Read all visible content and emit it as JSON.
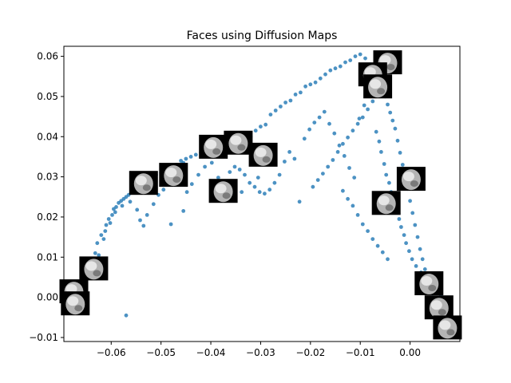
{
  "chart_data": {
    "type": "scatter",
    "title": "Faces using Diffusion Maps",
    "xlabel": "",
    "ylabel": "",
    "xlim": [
      -0.0695,
      0.01
    ],
    "ylim": [
      -0.011,
      0.0625
    ],
    "grid": false,
    "point_color": "#1f77b4",
    "xticks": [
      -0.06,
      -0.05,
      -0.04,
      -0.03,
      -0.02,
      -0.01,
      0.0
    ],
    "xtick_labels": [
      "−0.06",
      "−0.05",
      "−0.04",
      "−0.03",
      "−0.02",
      "−0.01",
      "0.00"
    ],
    "yticks": [
      -0.01,
      0.0,
      0.01,
      0.02,
      0.03,
      0.04,
      0.05,
      0.06
    ],
    "ytick_labels": [
      "−0.01",
      "0.00",
      "0.01",
      "0.02",
      "0.03",
      "0.04",
      "0.05",
      "0.06"
    ],
    "points": [
      [
        -0.0675,
        0.0005
      ],
      [
        -0.0672,
        -0.0008
      ],
      [
        -0.0665,
        0.0025
      ],
      [
        -0.066,
        0.004
      ],
      [
        -0.0655,
        0.0045
      ],
      [
        -0.065,
        0.006
      ],
      [
        -0.064,
        0.009
      ],
      [
        -0.0632,
        0.011
      ],
      [
        -0.0628,
        0.0135
      ],
      [
        -0.062,
        0.0155
      ],
      [
        -0.0615,
        0.0145
      ],
      [
        -0.061,
        0.018
      ],
      [
        -0.0605,
        0.0195
      ],
      [
        -0.0598,
        0.0205
      ],
      [
        -0.0595,
        0.022
      ],
      [
        -0.059,
        0.0225
      ],
      [
        -0.0585,
        0.0235
      ],
      [
        -0.058,
        0.024
      ],
      [
        -0.0575,
        0.0245
      ],
      [
        -0.057,
        0.025
      ],
      [
        -0.0565,
        0.0255
      ],
      [
        -0.056,
        0.026
      ],
      [
        -0.0555,
        0.027
      ],
      [
        -0.055,
        0.0275
      ],
      [
        -0.0545,
        0.028
      ],
      [
        -0.054,
        0.029
      ],
      [
        -0.0535,
        0.0285
      ],
      [
        -0.053,
        0.03
      ],
      [
        -0.052,
        0.0295
      ],
      [
        -0.051,
        0.0305
      ],
      [
        -0.05,
        0.031
      ],
      [
        -0.049,
        0.0315
      ],
      [
        -0.048,
        0.032
      ],
      [
        -0.047,
        0.033
      ],
      [
        -0.046,
        0.034
      ],
      [
        -0.045,
        0.0345
      ],
      [
        -0.044,
        0.035
      ],
      [
        -0.043,
        0.0355
      ],
      [
        -0.042,
        0.036
      ],
      [
        -0.041,
        0.0365
      ],
      [
        -0.04,
        0.037
      ],
      [
        -0.039,
        0.038
      ],
      [
        -0.038,
        0.0385
      ],
      [
        -0.037,
        0.039
      ],
      [
        -0.036,
        0.0395
      ],
      [
        -0.035,
        0.0375
      ],
      [
        -0.034,
        0.0385
      ],
      [
        -0.033,
        0.0395
      ],
      [
        -0.032,
        0.04
      ],
      [
        -0.031,
        0.0415
      ],
      [
        -0.03,
        0.0425
      ],
      [
        -0.029,
        0.043
      ],
      [
        -0.028,
        0.0455
      ],
      [
        -0.027,
        0.0465
      ],
      [
        -0.026,
        0.0475
      ],
      [
        -0.025,
        0.0485
      ],
      [
        -0.024,
        0.049
      ],
      [
        -0.023,
        0.0505
      ],
      [
        -0.022,
        0.051
      ],
      [
        -0.021,
        0.0525
      ],
      [
        -0.02,
        0.053
      ],
      [
        -0.019,
        0.0535
      ],
      [
        -0.018,
        0.0545
      ],
      [
        -0.017,
        0.0555
      ],
      [
        -0.016,
        0.0565
      ],
      [
        -0.015,
        0.057
      ],
      [
        -0.014,
        0.0575
      ],
      [
        -0.013,
        0.0585
      ],
      [
        -0.012,
        0.059
      ],
      [
        -0.011,
        0.06
      ],
      [
        -0.01,
        0.0605
      ],
      [
        -0.009,
        0.0595
      ],
      [
        -0.008,
        0.058
      ],
      [
        -0.007,
        0.056
      ],
      [
        -0.006,
        0.054
      ],
      [
        -0.0055,
        0.052
      ],
      [
        -0.005,
        0.05
      ],
      [
        -0.0045,
        0.048
      ],
      [
        -0.004,
        0.046
      ],
      [
        -0.0035,
        0.044
      ],
      [
        -0.003,
        0.042
      ],
      [
        -0.0025,
        0.039
      ],
      [
        -0.002,
        0.036
      ],
      [
        -0.0015,
        0.033
      ],
      [
        -0.001,
        0.03
      ],
      [
        -0.0005,
        0.027
      ],
      [
        0.0,
        0.024
      ],
      [
        0.0005,
        0.021
      ],
      [
        0.001,
        0.018
      ],
      [
        0.0015,
        0.015
      ],
      [
        0.002,
        0.012
      ],
      [
        0.0025,
        0.0095
      ],
      [
        0.003,
        0.007
      ],
      [
        0.0035,
        0.0045
      ],
      [
        0.004,
        0.002
      ],
      [
        0.0045,
        0.0
      ],
      [
        0.005,
        -0.002
      ],
      [
        0.006,
        -0.004
      ],
      [
        0.007,
        -0.006
      ],
      [
        0.008,
        -0.008
      ],
      [
        0.009,
        -0.0095
      ],
      [
        -0.0635,
        0.0075
      ],
      [
        -0.0625,
        0.0105
      ],
      [
        -0.0612,
        0.0165
      ],
      [
        -0.0602,
        0.0185
      ],
      [
        -0.0592,
        0.0212
      ],
      [
        -0.0578,
        0.0228
      ],
      [
        -0.0562,
        0.0238
      ],
      [
        -0.0548,
        0.0218
      ],
      [
        -0.0542,
        0.0192
      ],
      [
        -0.0535,
        0.0178
      ],
      [
        -0.0528,
        0.0205
      ],
      [
        -0.0515,
        0.0232
      ],
      [
        -0.0505,
        0.0255
      ],
      [
        -0.0495,
        0.0268
      ],
      [
        -0.0485,
        0.0288
      ],
      [
        -0.0475,
        0.0305
      ],
      [
        -0.0465,
        0.0325
      ],
      [
        -0.0455,
        0.0335
      ],
      [
        -0.0448,
        0.0262
      ],
      [
        -0.0438,
        0.0282
      ],
      [
        -0.0425,
        0.0305
      ],
      [
        -0.0412,
        0.0325
      ],
      [
        -0.0398,
        0.0335
      ],
      [
        -0.0385,
        0.0298
      ],
      [
        -0.0372,
        0.0288
      ],
      [
        -0.0362,
        0.0312
      ],
      [
        -0.0352,
        0.0325
      ],
      [
        -0.0342,
        0.0318
      ],
      [
        -0.0332,
        0.0305
      ],
      [
        -0.0322,
        0.0285
      ],
      [
        -0.0312,
        0.0275
      ],
      [
        -0.0302,
        0.0262
      ],
      [
        -0.0292,
        0.0258
      ],
      [
        -0.0282,
        0.0268
      ],
      [
        -0.0272,
        0.0285
      ],
      [
        -0.0262,
        0.0305
      ],
      [
        -0.0252,
        0.0338
      ],
      [
        -0.0242,
        0.0362
      ],
      [
        -0.0232,
        0.0345
      ],
      [
        -0.0222,
        0.0238
      ],
      [
        -0.0212,
        0.0395
      ],
      [
        -0.0202,
        0.0418
      ],
      [
        -0.0192,
        0.0435
      ],
      [
        -0.0182,
        0.0448
      ],
      [
        -0.0172,
        0.0462
      ],
      [
        -0.0162,
        0.0432
      ],
      [
        -0.0152,
        0.0408
      ],
      [
        -0.0142,
        0.0378
      ],
      [
        -0.0132,
        0.0352
      ],
      [
        -0.0122,
        0.0322
      ],
      [
        -0.0112,
        0.0298
      ],
      [
        -0.0102,
        0.0445
      ],
      [
        -0.0092,
        0.0478
      ],
      [
        -0.0082,
        0.0505
      ],
      [
        -0.0072,
        0.0528
      ],
      [
        -0.0068,
        0.0412
      ],
      [
        -0.0062,
        0.0388
      ],
      [
        -0.0058,
        0.0362
      ],
      [
        -0.0052,
        0.0332
      ],
      [
        -0.0048,
        0.0305
      ],
      [
        -0.0042,
        0.0285
      ],
      [
        -0.0038,
        0.0262
      ],
      [
        -0.0032,
        0.0238
      ],
      [
        -0.0028,
        0.0215
      ],
      [
        -0.0022,
        0.0195
      ],
      [
        -0.0018,
        0.0175
      ],
      [
        -0.0012,
        0.0155
      ],
      [
        -0.0008,
        0.0135
      ],
      [
        -0.0002,
        0.0115
      ],
      [
        0.0004,
        0.0095
      ],
      [
        0.0012,
        0.0078
      ],
      [
        0.0022,
        0.0062
      ],
      [
        0.0032,
        0.0048
      ],
      [
        0.0042,
        0.0032
      ],
      [
        0.0052,
        0.0015
      ],
      [
        0.0062,
        0.0005
      ],
      [
        0.0072,
        -0.0018
      ],
      [
        0.0082,
        -0.0035
      ],
      [
        0.0092,
        -0.0055
      ],
      [
        -0.0195,
        0.0275
      ],
      [
        -0.0185,
        0.0292
      ],
      [
        -0.0175,
        0.0308
      ],
      [
        -0.0165,
        0.0325
      ],
      [
        -0.0155,
        0.0342
      ],
      [
        -0.0145,
        0.0362
      ],
      [
        -0.0135,
        0.0382
      ],
      [
        -0.0125,
        0.0398
      ],
      [
        -0.0115,
        0.0415
      ],
      [
        -0.0105,
        0.0432
      ],
      [
        -0.0095,
        0.0448
      ],
      [
        -0.0085,
        0.0468
      ],
      [
        -0.0075,
        0.0488
      ],
      [
        -0.0065,
        0.0508
      ],
      [
        -0.0055,
        0.0535
      ],
      [
        -0.0135,
        0.0265
      ],
      [
        -0.0125,
        0.0245
      ],
      [
        -0.0115,
        0.0228
      ],
      [
        -0.0105,
        0.0205
      ],
      [
        -0.0095,
        0.0182
      ],
      [
        -0.0085,
        0.0165
      ],
      [
        -0.0075,
        0.0145
      ],
      [
        -0.0065,
        0.0128
      ],
      [
        -0.0055,
        0.0112
      ],
      [
        -0.0045,
        0.0095
      ],
      [
        -0.057,
        -0.0045
      ],
      [
        -0.0455,
        0.0215
      ],
      [
        -0.048,
        0.0182
      ],
      [
        -0.0338,
        0.0262
      ],
      [
        -0.0305,
        0.0298
      ]
    ],
    "thumbnails": [
      [
        -0.0045,
        0.0585
      ],
      [
        -0.0075,
        0.0555
      ],
      [
        -0.0065,
        0.0525
      ],
      [
        0.0002,
        0.0295
      ],
      [
        -0.0048,
        0.0235
      ],
      [
        0.0038,
        0.0035
      ],
      [
        0.0058,
        -0.0025
      ],
      [
        0.0075,
        -0.0075
      ],
      [
        -0.0345,
        0.0385
      ],
      [
        -0.0395,
        0.0375
      ],
      [
        -0.0295,
        0.0355
      ],
      [
        -0.0475,
        0.0305
      ],
      [
        -0.0535,
        0.0285
      ],
      [
        -0.0375,
        0.0265
      ],
      [
        -0.0635,
        0.0072
      ],
      [
        -0.0675,
        0.0015
      ],
      [
        -0.0672,
        -0.0015
      ]
    ]
  }
}
